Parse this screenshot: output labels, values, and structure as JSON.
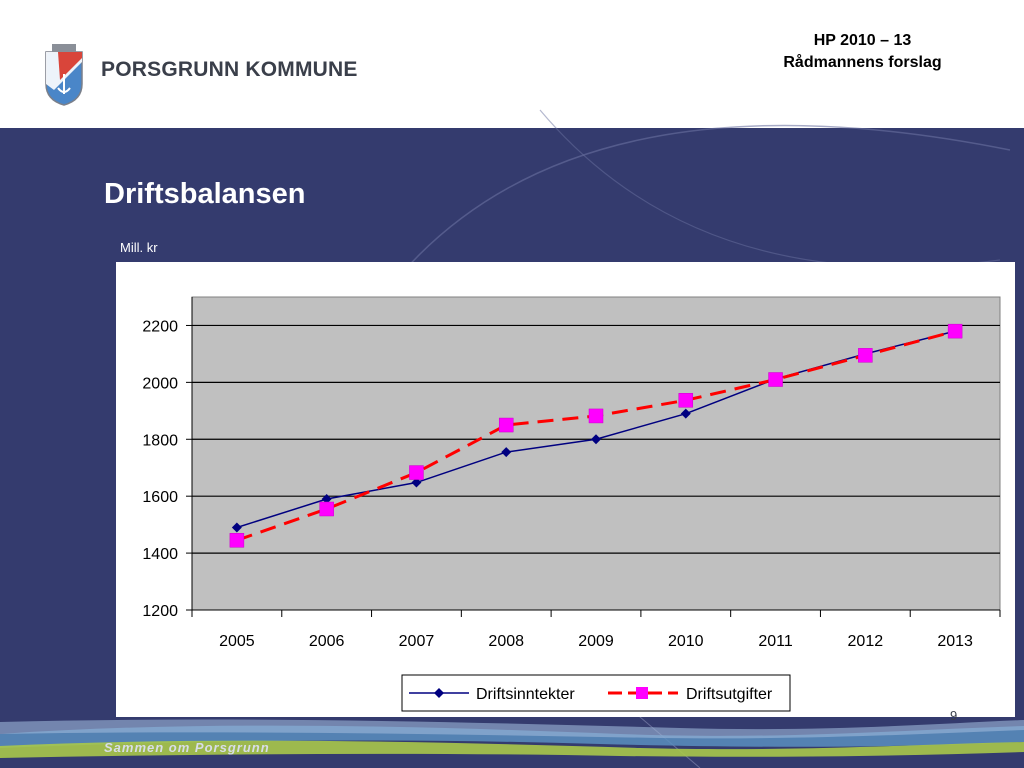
{
  "header": {
    "brand": "PORSGRUNN KOMMUNE",
    "plan_line1": "HP 2010 – 13",
    "plan_line2": "Rådmannens forslag"
  },
  "slide": {
    "title": "Driftsbalansen",
    "unit": "Mill. kr"
  },
  "footer": {
    "tagline": "Sammen om Porsgrunn",
    "page_number": "9"
  },
  "colors": {
    "background_blue": "#343b6e",
    "plot_area": "#c0c0c0",
    "inntekter_line": "#000080",
    "utgifter_line": "#ff0000",
    "utgifter_marker": "#ff00ff"
  },
  "chart_data": {
    "type": "line",
    "title": "",
    "xlabel": "",
    "ylabel": "Mill. kr",
    "categories": [
      "2005",
      "2006",
      "2007",
      "2008",
      "2009",
      "2010",
      "2011",
      "2012",
      "2013"
    ],
    "ylim": [
      1200,
      2300
    ],
    "yticks": [
      1200,
      1400,
      1600,
      1800,
      2000,
      2200
    ],
    "grid": true,
    "legend": "bottom",
    "series": [
      {
        "name": "Driftsinntekter",
        "values": [
          1490,
          1590,
          1648,
          1755,
          1800,
          1890,
          2012,
          2100,
          2180
        ],
        "marker": "diamond",
        "style": "solid"
      },
      {
        "name": "Driftsutgifter",
        "values": [
          1445,
          1555,
          1683,
          1850,
          1882,
          1937,
          2010,
          2095,
          2180
        ],
        "marker": "square",
        "style": "dashed"
      }
    ]
  }
}
